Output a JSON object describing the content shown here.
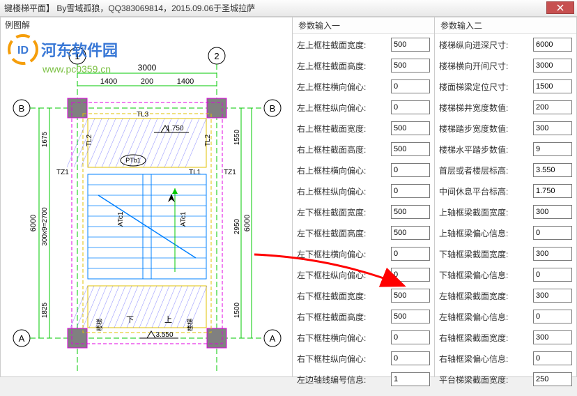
{
  "title": "键楼梯平面】 By雪域孤狼，QQ383069814，2015.09.06于圣城拉萨",
  "left_panel_title": "例图解",
  "watermark": {
    "brand": "河东软件园",
    "url": "www.pc0359.cn"
  },
  "param1_title": "参数输入一",
  "param2_title": "参数输入二",
  "params1": [
    {
      "label": "左上框柱截面宽度:",
      "value": "500"
    },
    {
      "label": "左上框柱截面高度:",
      "value": "500"
    },
    {
      "label": "左上框柱横向偏心:",
      "value": "0"
    },
    {
      "label": "左上框柱纵向偏心:",
      "value": "0"
    },
    {
      "label": "右上框柱截面宽度:",
      "value": "500"
    },
    {
      "label": "右上框柱截面高度:",
      "value": "500"
    },
    {
      "label": "右上框柱横向偏心:",
      "value": "0"
    },
    {
      "label": "右上框柱纵向偏心:",
      "value": "0"
    },
    {
      "label": "左下框柱截面宽度:",
      "value": "500"
    },
    {
      "label": "左下框柱截面高度:",
      "value": "500"
    },
    {
      "label": "左下框柱横向偏心:",
      "value": "0"
    },
    {
      "label": "左下框柱纵向偏心:",
      "value": "0"
    },
    {
      "label": "右下框柱截面宽度:",
      "value": "500"
    },
    {
      "label": "右下框柱截面高度:",
      "value": "500"
    },
    {
      "label": "右下框柱横向偏心:",
      "value": "0"
    },
    {
      "label": "右下框柱纵向偏心:",
      "value": "0"
    },
    {
      "label": "左边轴线编号信息:",
      "value": "1"
    }
  ],
  "params2": [
    {
      "label": "楼梯纵向进深尺寸:",
      "value": "6000"
    },
    {
      "label": "楼梯横向开间尺寸:",
      "value": "3000"
    },
    {
      "label": "楼面梯梁定位尺寸:",
      "value": "1500"
    },
    {
      "label": "楼梯梯井宽度数值:",
      "value": "200"
    },
    {
      "label": "楼梯踏步宽度数值:",
      "value": "300"
    },
    {
      "label": "楼梯水平踏步数值:",
      "value": "9"
    },
    {
      "label": "首层或者楼层标高:",
      "value": "3.550"
    },
    {
      "label": "中间休息平台标高:",
      "value": "1.750"
    },
    {
      "label": "上轴框梁截面宽度:",
      "value": "300"
    },
    {
      "label": "上轴框梁偏心信息:",
      "value": "0"
    },
    {
      "label": "下轴框梁截面宽度:",
      "value": "300"
    },
    {
      "label": "下轴框梁偏心信息:",
      "value": "0"
    },
    {
      "label": "左轴框梁截面宽度:",
      "value": "300"
    },
    {
      "label": "左轴框梁偏心信息:",
      "value": "0"
    },
    {
      "label": "右轴框梁截面宽度:",
      "value": "300"
    },
    {
      "label": "右轴框梁偏心信息:",
      "value": "0"
    },
    {
      "label": "平台梯梁截面宽度:",
      "value": "250"
    }
  ],
  "diagram": {
    "bg": "#ffffff",
    "axis_color": "#00c800",
    "dim_color": "#00c800",
    "col_fill": "#808080",
    "col_border": "#e000e0",
    "beam_color": "#e0c000",
    "stair_color": "#0080ff",
    "hatch_color": "#4040ff",
    "text_color": "#000000",
    "magenta": "#e000e0",
    "dims": {
      "top_total": "3000",
      "top_left": "1400",
      "top_mid": "200",
      "top_right": "1400",
      "left_total": "6000",
      "left_upper": "1675",
      "left_mid": "300x9=2700",
      "left_lower": "1825",
      "right_total": "6000",
      "right_upper": "1550",
      "right_mid": "2950",
      "right_lower": "1500"
    },
    "labels": {
      "tz1": "TZ1",
      "tz2": "TZ1",
      "tl1": "TL1",
      "tl2": "TL2",
      "tl3": "TL3",
      "ptb1": "PTb1",
      "atc1": "ATc1",
      "atc2": "ATc1",
      "h1": "1.750",
      "h2": "3.550"
    },
    "circles": {
      "c1": "1",
      "c2": "2",
      "ca": "A",
      "cb": "B"
    }
  }
}
